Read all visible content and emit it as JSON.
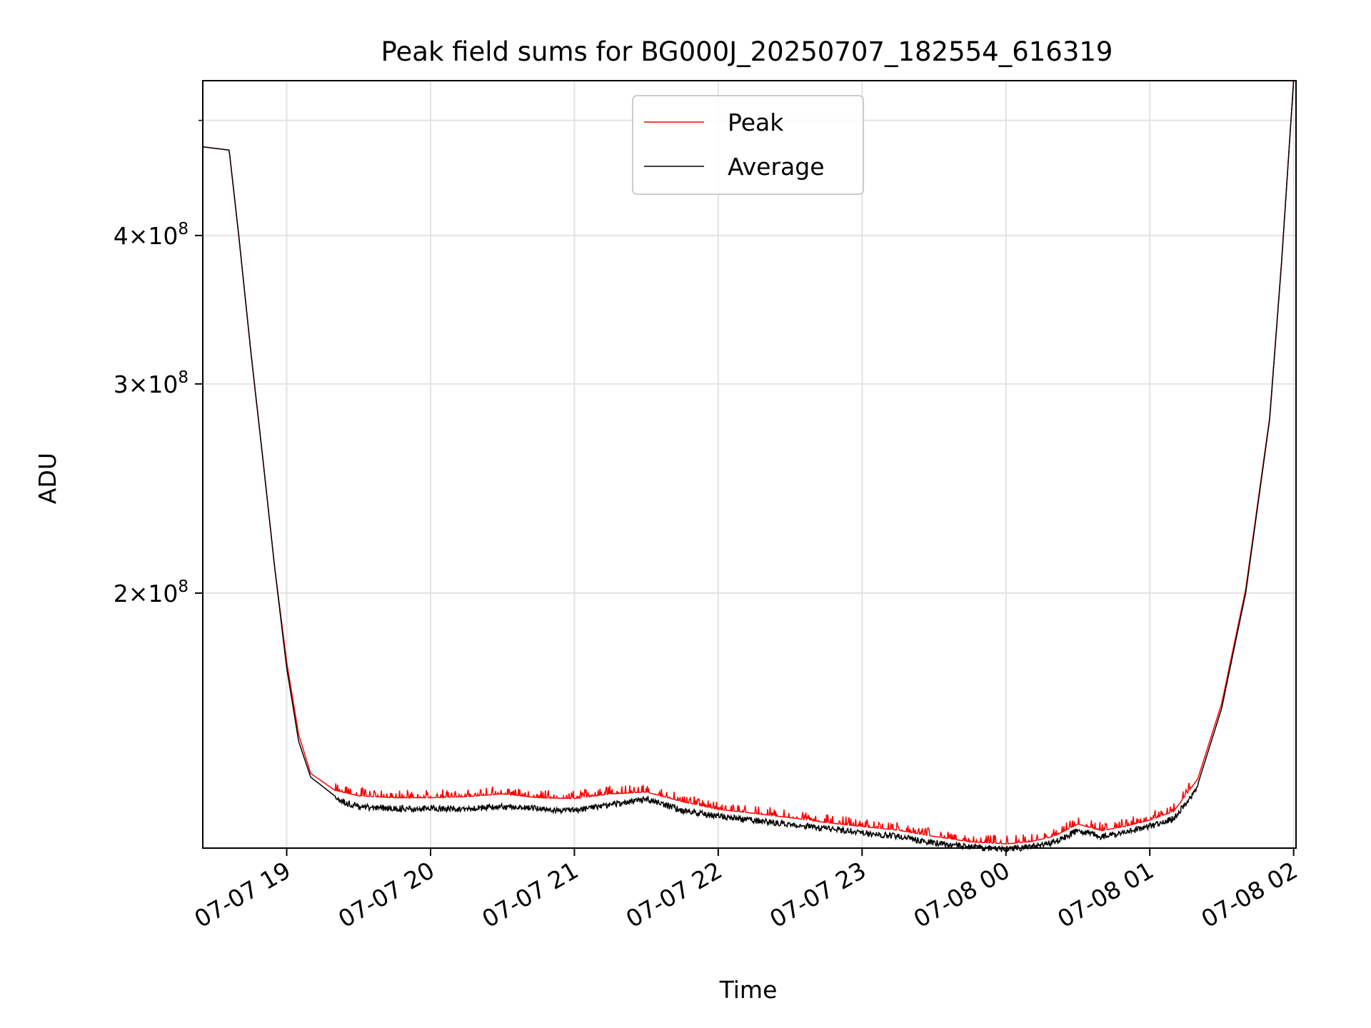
{
  "chart_data": {
    "type": "line",
    "title": "Peak field sums for BG000J_20250707_182554_616319",
    "xlabel": "Time",
    "ylabel": "ADU",
    "y_scale": "log",
    "grid": true,
    "legend_position": "top-center",
    "x_range": [
      "2025-07-07 18:25",
      "2025-07-08 02:01"
    ],
    "ylim": [
      122000000,
      540000000
    ],
    "x_ticks": [
      "07-07 19",
      "07-07 20",
      "07-07 21",
      "07-07 22",
      "07-07 23",
      "07-08 00",
      "07-08 01",
      "07-08 02"
    ],
    "y_ticks": [
      {
        "base": "2",
        "mult": "×",
        "ten": "10",
        "exp": "8",
        "value": 200000000
      },
      {
        "base": "3",
        "mult": "×",
        "ten": "10",
        "exp": "8",
        "value": 300000000
      },
      {
        "base": "4",
        "mult": "×",
        "ten": "10",
        "exp": "8",
        "value": 400000000
      }
    ],
    "series": [
      {
        "name": "Peak",
        "color": "#ff0000"
      },
      {
        "name": "Average",
        "color": "#000000"
      }
    ],
    "x": [
      "2025-07-07 18:25",
      "2025-07-07 18:36",
      "2025-07-07 18:40",
      "2025-07-07 18:45",
      "2025-07-07 18:50",
      "2025-07-07 18:55",
      "2025-07-07 19:00",
      "2025-07-07 19:05",
      "2025-07-07 19:10",
      "2025-07-07 19:20",
      "2025-07-07 19:30",
      "2025-07-07 19:45",
      "2025-07-07 20:00",
      "2025-07-07 20:15",
      "2025-07-07 20:30",
      "2025-07-07 20:45",
      "2025-07-07 21:00",
      "2025-07-07 21:15",
      "2025-07-07 21:30",
      "2025-07-07 21:45",
      "2025-07-07 22:00",
      "2025-07-07 22:15",
      "2025-07-07 22:30",
      "2025-07-07 22:45",
      "2025-07-07 23:00",
      "2025-07-07 23:15",
      "2025-07-07 23:30",
      "2025-07-07 23:45",
      "2025-07-08 00:00",
      "2025-07-08 00:10",
      "2025-07-08 00:20",
      "2025-07-08 00:30",
      "2025-07-08 00:40",
      "2025-07-08 00:50",
      "2025-07-08 01:00",
      "2025-07-08 01:10",
      "2025-07-08 01:20",
      "2025-07-08 01:30",
      "2025-07-08 01:40",
      "2025-07-08 01:50",
      "2025-07-08 01:55",
      "2025-07-08 02:00"
    ],
    "average": [
      475000000,
      472000000,
      400000000,
      320000000,
      260000000,
      210000000,
      173000000,
      150000000,
      140000000,
      135000000,
      133000000,
      132500000,
      132500000,
      132500000,
      133000000,
      132500000,
      132000000,
      133500000,
      135000000,
      132000000,
      130500000,
      129500000,
      128500000,
      127500000,
      126500000,
      125500000,
      124000000,
      123000000,
      122500000,
      123000000,
      124000000,
      127000000,
      125500000,
      126500000,
      128000000,
      130000000,
      138000000,
      160000000,
      200000000,
      280000000,
      380000000,
      540000000
    ],
    "peak": [
      475000000,
      472000000,
      400000000,
      320000000,
      260000000,
      210000000,
      175000000,
      152000000,
      141000000,
      136500000,
      135000000,
      134500000,
      134500000,
      134800000,
      135500000,
      134500000,
      134300000,
      135500000,
      136000000,
      133500000,
      131500000,
      130500000,
      129400000,
      128200000,
      127200000,
      126300000,
      124800000,
      123500000,
      123000000,
      123500000,
      124800000,
      127800000,
      126200000,
      127300000,
      128800000,
      131000000,
      139500000,
      161500000,
      201500000,
      281000000,
      381000000,
      540000000
    ]
  }
}
